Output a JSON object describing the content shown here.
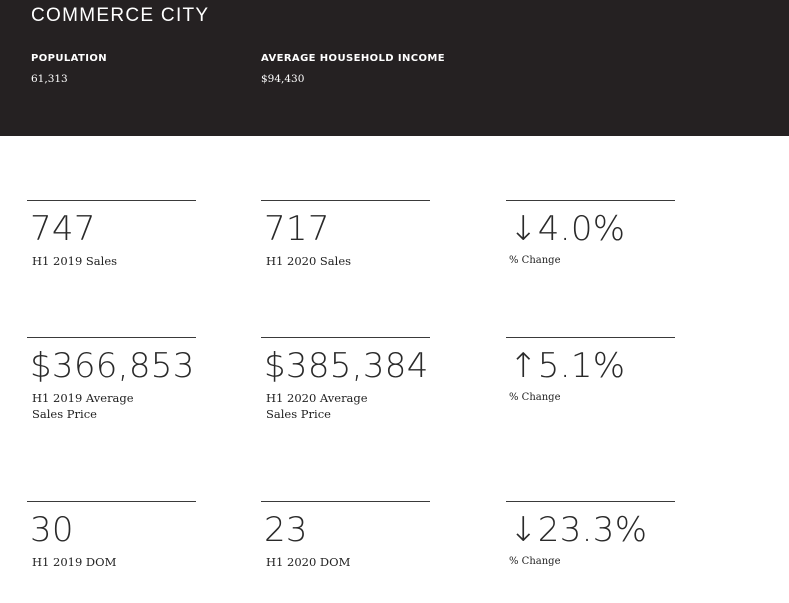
{
  "header": {
    "city": "COMMERCE CITY",
    "population_label": "POPULATION",
    "population_value": "61,313",
    "income_label": "AVERAGE HOUSEHOLD INCOME",
    "income_value": "$94,430"
  },
  "rows": [
    {
      "stats": [
        {
          "value": "747",
          "caption_line1": "H1 2019 Sales",
          "caption_line2": ""
        },
        {
          "value": "717",
          "caption_line1": "H1 2020 Sales",
          "caption_line2": ""
        },
        {
          "arrow": "↓",
          "value": "4.0%",
          "caption_line1": "% Change",
          "caption_line2": ""
        }
      ]
    },
    {
      "stats": [
        {
          "value": "$366,853",
          "caption_line1": "H1 2019 Average",
          "caption_line2": "Sales Price"
        },
        {
          "value": "$385,384",
          "caption_line1": "H1 2020 Average",
          "caption_line2": "Sales Price"
        },
        {
          "arrow": "↑",
          "value": "5.1%",
          "caption_line1": "% Change",
          "caption_line2": ""
        }
      ]
    },
    {
      "stats": [
        {
          "value": "30",
          "caption_line1": "H1 2019 DOM",
          "caption_line2": ""
        },
        {
          "value": "23",
          "caption_line1": "H1 2020 DOM",
          "caption_line2": ""
        },
        {
          "arrow": "↓",
          "value": "23.3%",
          "caption_line1": "% Change",
          "caption_line2": ""
        }
      ]
    }
  ],
  "colors": {
    "header_bg": "#252122",
    "header_text": "#ffffff",
    "body_text": "#2a2a2a"
  }
}
